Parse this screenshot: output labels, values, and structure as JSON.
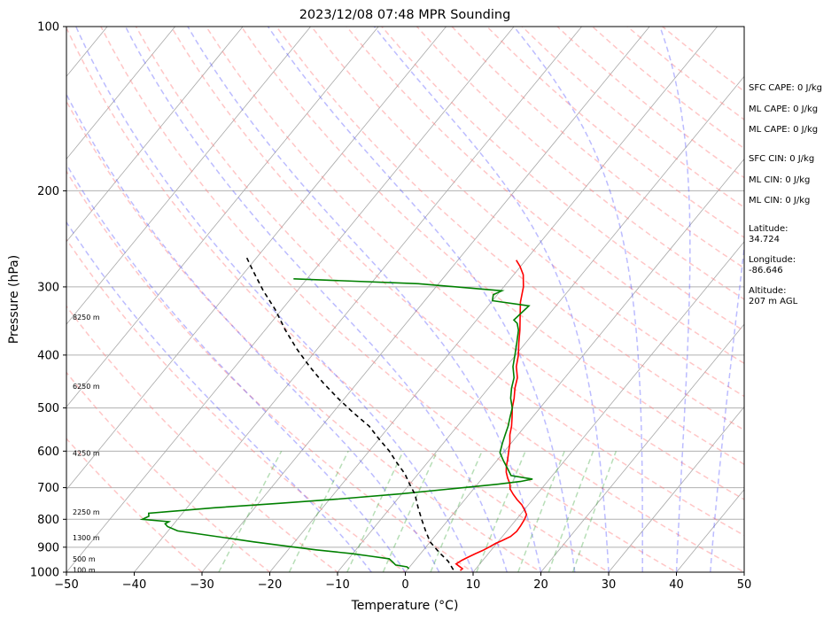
{
  "chart_data": {
    "type": "line",
    "title": "2023/12/08 07:48 MPR Sounding",
    "xlabel": "Temperature (°C)",
    "ylabel": "Pressure (hPa)",
    "xlim": [
      -50,
      50
    ],
    "ylim": [
      1000,
      100
    ],
    "y_scale": "log",
    "x_ticks": [
      -50,
      -40,
      -30,
      -20,
      -10,
      0,
      10,
      20,
      30,
      40,
      50
    ],
    "y_ticks": [
      1000,
      900,
      800,
      700,
      600,
      500,
      400,
      300,
      200,
      100
    ],
    "grid": "horizontal at pressure ticks",
    "skew_lines": {
      "isotherms": [
        -180,
        -170,
        -160,
        -150,
        -140,
        -130,
        -120,
        -110,
        -100,
        -90,
        -80,
        -70,
        -60,
        -50,
        -40,
        -30,
        -20,
        -10,
        0,
        10,
        20,
        30,
        40,
        50
      ],
      "dry_adiabats": [
        -30,
        -20,
        -10,
        0,
        10,
        20,
        30,
        40,
        50,
        60,
        70,
        80,
        90,
        100,
        110,
        120,
        130,
        140,
        150,
        160,
        170,
        180,
        190,
        200
      ],
      "moist_adiabats": [
        -5,
        0,
        5,
        10,
        15,
        20,
        25,
        30,
        35,
        40,
        45
      ],
      "mixing_ratio_lines": [
        0.4,
        1,
        2,
        3,
        5,
        8,
        12,
        16,
        20
      ]
    },
    "series": [
      {
        "name": "",
        "color": "#ff0000",
        "points": [
          [
            7.9,
            993
          ],
          [
            8.0,
            985
          ],
          [
            7.2,
            975
          ],
          [
            6.5,
            966
          ],
          [
            6.9,
            951
          ],
          [
            7.4,
            940
          ],
          [
            8.1,
            925
          ],
          [
            8.8,
            912
          ],
          [
            9.4,
            898
          ],
          [
            9.8,
            887
          ],
          [
            10.5,
            874
          ],
          [
            11.2,
            860
          ],
          [
            11.5,
            842
          ],
          [
            11.4,
            822
          ],
          [
            11.2,
            800
          ],
          [
            10.9,
            784
          ],
          [
            10.0,
            768
          ],
          [
            9.0,
            752
          ],
          [
            7.7,
            736
          ],
          [
            6.5,
            720
          ],
          [
            5.4,
            704
          ],
          [
            4.7,
            688
          ],
          [
            3.7,
            672
          ],
          [
            2.8,
            656
          ],
          [
            2.1,
            640
          ],
          [
            1.4,
            620
          ],
          [
            0.6,
            600
          ],
          [
            -0.2,
            580
          ],
          [
            -1.2,
            560
          ],
          [
            -2.0,
            540
          ],
          [
            -3.0,
            520
          ],
          [
            -4.1,
            500
          ],
          [
            -5.0,
            480
          ],
          [
            -6.1,
            460
          ],
          [
            -7.0,
            440
          ],
          [
            -8.5,
            420
          ],
          [
            -9.6,
            400
          ],
          [
            -11.0,
            380
          ],
          [
            -12.4,
            360
          ],
          [
            -14.0,
            340
          ],
          [
            -15.7,
            320
          ],
          [
            -17.1,
            300
          ],
          [
            -18.6,
            285
          ],
          [
            -20.1,
            275
          ],
          [
            -21.4,
            268
          ]
        ]
      },
      {
        "name": "",
        "color": "#008000",
        "points": [
          [
            0.1,
            985
          ],
          [
            -0.4,
            978
          ],
          [
            -2.3,
            970
          ],
          [
            -3.1,
            958
          ],
          [
            -4.0,
            945
          ],
          [
            -7.0,
            935
          ],
          [
            -10.1,
            925
          ],
          [
            -15.9,
            910
          ],
          [
            -21.0,
            895
          ],
          [
            -26.0,
            880
          ],
          [
            -38.6,
            840
          ],
          [
            -40.6,
            825
          ],
          [
            -41.3,
            815
          ],
          [
            -41.0,
            808
          ],
          [
            -45.2,
            800
          ],
          [
            -44.6,
            790
          ],
          [
            -45.0,
            780
          ],
          [
            -40.0,
            770
          ],
          [
            -36.0,
            762
          ],
          [
            -27.0,
            748
          ],
          [
            -19.0,
            735
          ],
          [
            -10.0,
            718
          ],
          [
            -4.0,
            705
          ],
          [
            3.0,
            690
          ],
          [
            6.0,
            682
          ],
          [
            7.5,
            675
          ],
          [
            3.9,
            665
          ],
          [
            2.5,
            645
          ],
          [
            1.0,
            625
          ],
          [
            -0.5,
            604
          ],
          [
            -1.3,
            580
          ],
          [
            -1.9,
            560
          ],
          [
            -2.5,
            540
          ],
          [
            -3.3,
            520
          ],
          [
            -4.1,
            500
          ],
          [
            -5.5,
            480
          ],
          [
            -6.6,
            460
          ],
          [
            -7.5,
            440
          ],
          [
            -9.0,
            420
          ],
          [
            -10.1,
            400
          ],
          [
            -11.3,
            380
          ],
          [
            -12.6,
            360
          ],
          [
            -13.6,
            350
          ],
          [
            -14.5,
            345
          ],
          [
            -14.0,
            325
          ],
          [
            -20.0,
            318
          ],
          [
            -20.6,
            310
          ],
          [
            -19.8,
            305
          ],
          [
            -33.0,
            296
          ],
          [
            -52.0,
            290
          ]
        ]
      },
      {
        "name": "",
        "color": "#000000",
        "dashed": true,
        "points": [
          [
            6.8,
            990
          ],
          [
            5.0,
            955
          ],
          [
            2.6,
            920
          ],
          [
            0.0,
            880
          ],
          [
            -2.0,
            840
          ],
          [
            -4.0,
            800
          ],
          [
            -6.0,
            760
          ],
          [
            -8.0,
            720
          ],
          [
            -10.0,
            690
          ],
          [
            -12.0,
            660
          ],
          [
            -14.5,
            630
          ],
          [
            -17.0,
            600
          ],
          [
            -20.0,
            570
          ],
          [
            -23.0,
            540
          ],
          [
            -27.0,
            510
          ],
          [
            -31.0,
            480
          ],
          [
            -35.0,
            450
          ],
          [
            -39.0,
            420
          ],
          [
            -43.0,
            390
          ],
          [
            -47.0,
            360
          ],
          [
            -51.0,
            330
          ],
          [
            -55.0,
            305
          ],
          [
            -59.0,
            280
          ],
          [
            -61.5,
            265
          ]
        ]
      }
    ],
    "height_labels": [
      {
        "text": "100 m",
        "p": 990
      },
      {
        "text": "500 m",
        "p": 945
      },
      {
        "text": "1300 m",
        "p": 865
      },
      {
        "text": "2250 m",
        "p": 775
      },
      {
        "text": "4250 m",
        "p": 605
      },
      {
        "text": "6250 m",
        "p": 456
      },
      {
        "text": "8250 m",
        "p": 341
      }
    ],
    "annotations": [
      "SFC CAPE: 0 J/kg",
      "ML CAPE: 0 J/kg",
      "ML CAPE: 0 J/kg",
      "SFC CIN: 0 J/kg",
      "ML CIN: 0 J/kg",
      "ML CIN: 0 J/kg",
      "Latitude:",
      "34.724",
      "Longitude:",
      "-86.646",
      "Altitude:",
      "207 m AGL"
    ]
  }
}
